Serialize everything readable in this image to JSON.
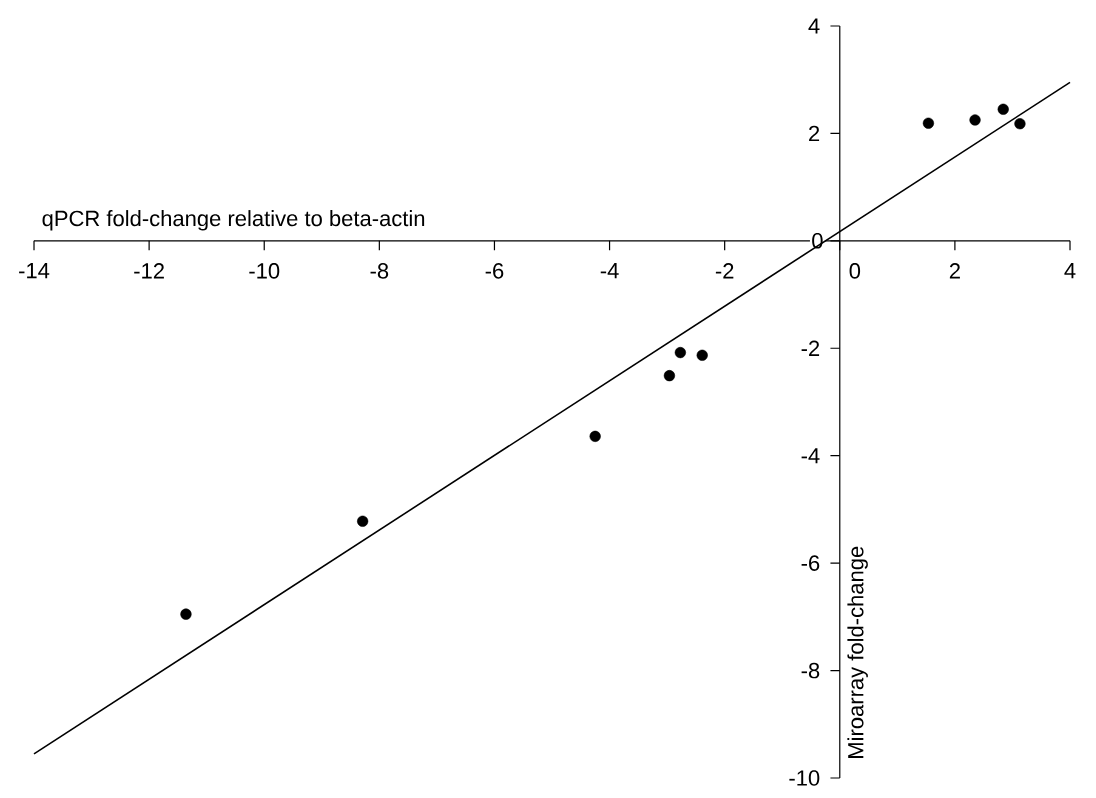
{
  "chart_data": {
    "type": "scatter",
    "xlabel": "qPCR fold-change relative to beta-actin",
    "ylabel": "Miroarray fold-change",
    "xlim": [
      -14,
      4
    ],
    "ylim": [
      -10,
      4
    ],
    "xticks": [
      -14,
      -12,
      -10,
      -8,
      -6,
      -4,
      -2,
      0,
      2,
      4
    ],
    "yticks": [
      -10,
      -8,
      -6,
      -4,
      -2,
      0,
      2,
      4
    ],
    "grid": false,
    "series": [
      {
        "type": "scatter",
        "marker": "circle",
        "color": "#000000",
        "x": [
          -11.36,
          -8.29,
          -4.25,
          -2.96,
          -2.77,
          -2.39,
          1.54,
          2.35,
          2.84,
          3.13
        ],
        "values": [
          -6.95,
          -5.22,
          -3.64,
          -2.51,
          -2.08,
          -2.13,
          2.19,
          2.25,
          2.45,
          2.18
        ]
      },
      {
        "type": "line",
        "marker": "none",
        "line_style": "solid",
        "color": "#000000",
        "x": [
          -14,
          4
        ],
        "values": [
          -9.55,
          2.95
        ]
      }
    ]
  }
}
